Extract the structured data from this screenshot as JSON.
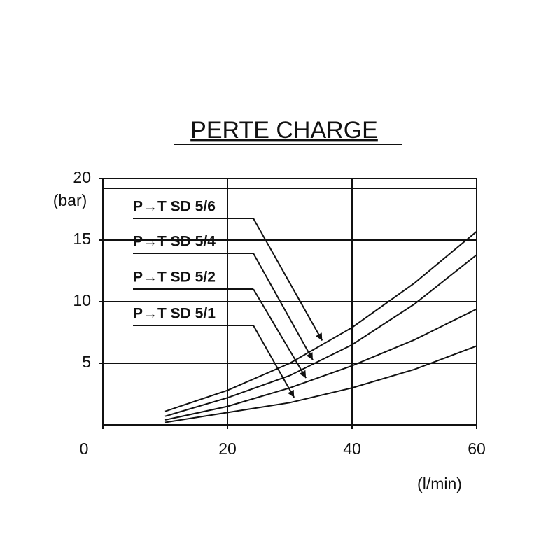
{
  "chart_data": {
    "type": "line",
    "title": "PERTE CHARGE",
    "y_label": "(bar)",
    "x_label": "(l/min)",
    "x": [
      10,
      20,
      30,
      40,
      50,
      60
    ],
    "series": [
      {
        "name": "P→T SD 5/6",
        "color": "#111111",
        "values": [
          1.1,
          2.8,
          5.0,
          7.9,
          11.5,
          15.7
        ]
      },
      {
        "name": "P→T SD 5/4",
        "color": "#111111",
        "values": [
          0.7,
          2.2,
          4.0,
          6.5,
          9.8,
          13.8
        ]
      },
      {
        "name": "P→T SD 5/2",
        "color": "#111111",
        "values": [
          0.4,
          1.5,
          3.0,
          4.8,
          6.9,
          9.4
        ]
      },
      {
        "name": "P→T SD 5/1",
        "color": "#111111",
        "values": [
          0.2,
          1.0,
          1.8,
          3.0,
          4.5,
          6.4
        ]
      }
    ],
    "xlim": [
      0,
      60
    ],
    "xticks": [
      0,
      20,
      40,
      60
    ],
    "ylim": [
      0,
      20
    ],
    "yticks": [
      5,
      10,
      15,
      20
    ],
    "grid": true
  }
}
